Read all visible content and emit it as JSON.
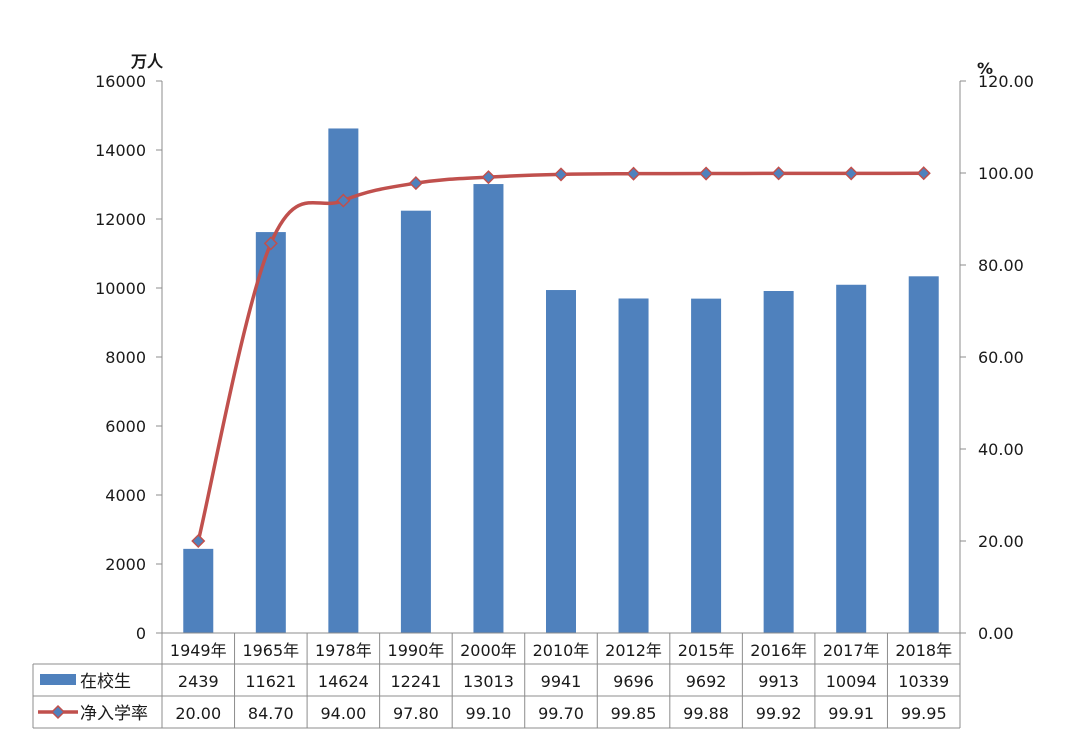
{
  "chart_data": {
    "type": "bar+line",
    "categories": [
      "1949年",
      "1965年",
      "1978年",
      "1990年",
      "2000年",
      "2010年",
      "2012年",
      "2015年",
      "2016年",
      "2017年",
      "2018年"
    ],
    "series": [
      {
        "name": "在校生",
        "type": "bar",
        "axis": "left",
        "color": "#4f81bd",
        "values": [
          2439,
          11621,
          14624,
          12241,
          13013,
          9941,
          9696,
          9692,
          9913,
          10094,
          10339
        ],
        "labels": [
          "2439",
          "11621",
          "14624",
          "12241",
          "13013",
          "9941",
          "9696",
          "9692",
          "9913",
          "10094",
          "10339"
        ]
      },
      {
        "name": "净入学率",
        "type": "line",
        "axis": "right",
        "color": "#c0504d",
        "marker_color": "#4f81bd",
        "values": [
          20.0,
          84.7,
          94.0,
          97.8,
          99.1,
          99.7,
          99.85,
          99.88,
          99.92,
          99.91,
          99.95
        ],
        "labels": [
          "20.00",
          "84.70",
          "94.00",
          "97.80",
          "99.10",
          "99.70",
          "99.85",
          "99.88",
          "99.92",
          "99.91",
          "99.95"
        ]
      }
    ],
    "y_left": {
      "unit": "万人",
      "ylim": [
        0,
        16000
      ],
      "ticks": [
        "0",
        "2000",
        "4000",
        "6000",
        "8000",
        "10000",
        "12000",
        "14000",
        "16000"
      ]
    },
    "y_right": {
      "unit": "%",
      "ylim": [
        0,
        120
      ],
      "ticks": [
        "0.00",
        "20.00",
        "40.00",
        "60.00",
        "80.00",
        "100.00",
        "120.00"
      ]
    },
    "grid": false,
    "data_table": true
  }
}
